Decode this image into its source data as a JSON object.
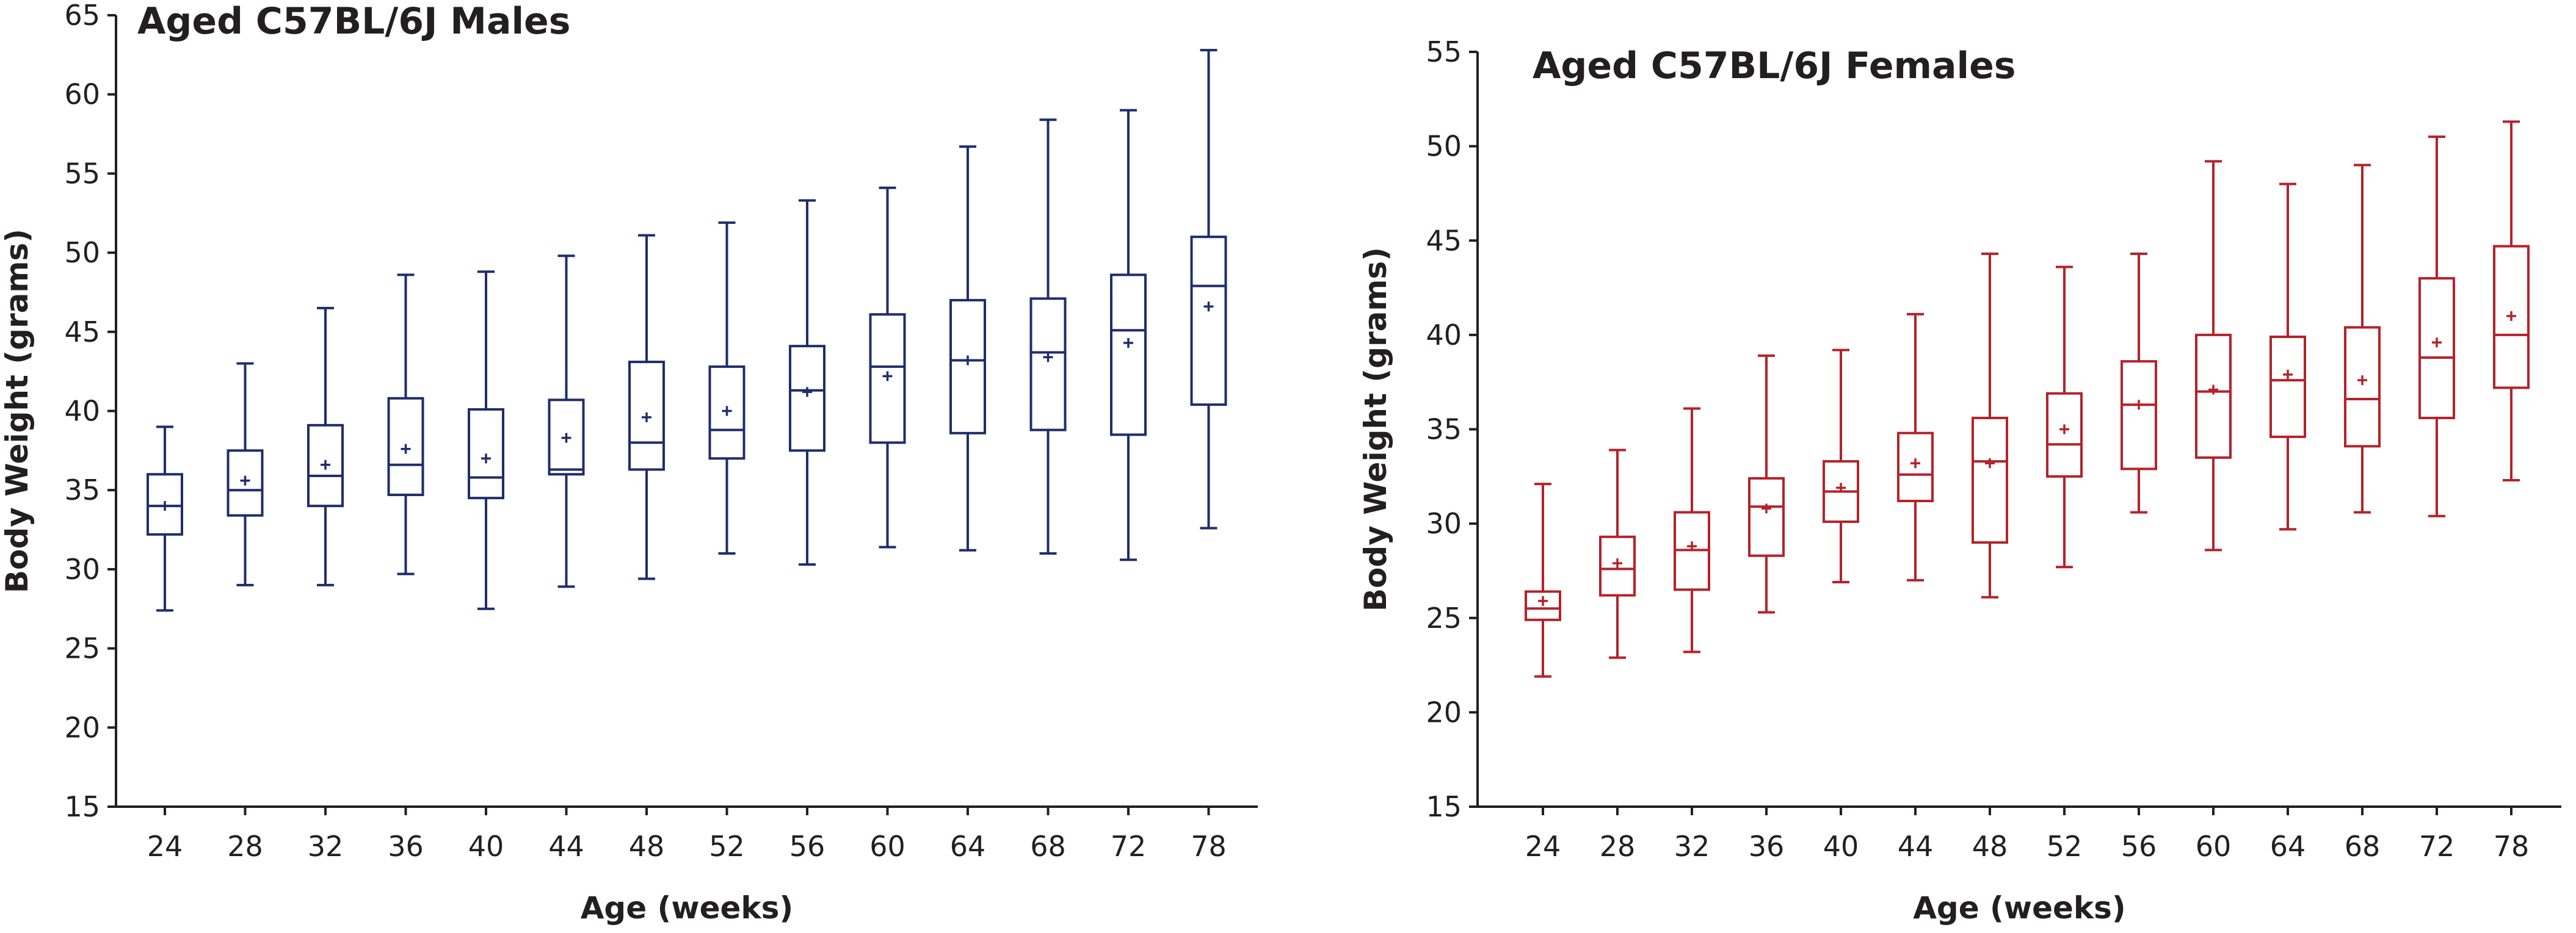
{
  "chart_data": [
    {
      "type": "box",
      "title": "Aged C57BL/6J Males",
      "xlabel": "Age (weeks)",
      "ylabel": "Body Weight (grams)",
      "ylim": [
        15,
        65
      ],
      "yticks": [
        15,
        20,
        25,
        30,
        35,
        40,
        45,
        50,
        55,
        60,
        65
      ],
      "grid": false,
      "color": "#1f2d6b",
      "categories": [
        "24",
        "28",
        "32",
        "36",
        "40",
        "44",
        "48",
        "52",
        "56",
        "60",
        "64",
        "68",
        "72",
        "78"
      ],
      "boxes": [
        {
          "min": 27.4,
          "q1": 32.2,
          "median": 34.0,
          "q3": 36.0,
          "max": 39.0,
          "mean": 34.0
        },
        {
          "min": 29.0,
          "q1": 33.4,
          "median": 35.0,
          "q3": 37.5,
          "max": 43.0,
          "mean": 35.6
        },
        {
          "min": 29.0,
          "q1": 34.0,
          "median": 35.9,
          "q3": 39.1,
          "max": 46.5,
          "mean": 36.6
        },
        {
          "min": 29.7,
          "q1": 34.7,
          "median": 36.6,
          "q3": 40.8,
          "max": 48.6,
          "mean": 37.6
        },
        {
          "min": 27.5,
          "q1": 34.5,
          "median": 35.8,
          "q3": 40.1,
          "max": 48.8,
          "mean": 37.0
        },
        {
          "min": 28.9,
          "q1": 36.0,
          "median": 36.3,
          "q3": 40.7,
          "max": 49.8,
          "mean": 38.3
        },
        {
          "min": 29.4,
          "q1": 36.3,
          "median": 38.0,
          "q3": 43.1,
          "max": 51.1,
          "mean": 39.6
        },
        {
          "min": 31.0,
          "q1": 37.0,
          "median": 38.8,
          "q3": 42.8,
          "max": 51.9,
          "mean": 40.0
        },
        {
          "min": 30.3,
          "q1": 37.5,
          "median": 41.3,
          "q3": 44.1,
          "max": 53.3,
          "mean": 41.2
        },
        {
          "min": 31.4,
          "q1": 38.0,
          "median": 42.8,
          "q3": 46.1,
          "max": 54.1,
          "mean": 42.2
        },
        {
          "min": 31.2,
          "q1": 38.6,
          "median": 43.2,
          "q3": 47.0,
          "max": 56.7,
          "mean": 43.2
        },
        {
          "min": 31.0,
          "q1": 38.8,
          "median": 43.7,
          "q3": 47.1,
          "max": 58.4,
          "mean": 43.4
        },
        {
          "min": 30.6,
          "q1": 38.5,
          "median": 45.1,
          "q3": 48.6,
          "max": 59.0,
          "mean": 44.3
        },
        {
          "min": 32.6,
          "q1": 40.4,
          "median": 47.9,
          "q3": 51.0,
          "max": 62.8,
          "mean": 46.6
        }
      ]
    },
    {
      "type": "box",
      "title": "Aged C57BL/6J Females",
      "xlabel": "Age (weeks)",
      "ylabel": "Body Weight (grams)",
      "ylim": [
        15,
        55
      ],
      "yticks": [
        15,
        20,
        25,
        30,
        35,
        40,
        45,
        50,
        55
      ],
      "grid": false,
      "color": "#b5222a",
      "categories": [
        "24",
        "28",
        "32",
        "36",
        "40",
        "44",
        "48",
        "52",
        "56",
        "60",
        "64",
        "68",
        "72",
        "78"
      ],
      "boxes": [
        {
          "min": 21.9,
          "q1": 24.9,
          "median": 25.5,
          "q3": 26.4,
          "max": 32.1,
          "mean": 25.9
        },
        {
          "min": 22.9,
          "q1": 26.2,
          "median": 27.6,
          "q3": 29.3,
          "max": 33.9,
          "mean": 27.9
        },
        {
          "min": 23.2,
          "q1": 26.5,
          "median": 28.6,
          "q3": 30.6,
          "max": 36.1,
          "mean": 28.8
        },
        {
          "min": 25.3,
          "q1": 28.3,
          "median": 30.9,
          "q3": 32.4,
          "max": 38.9,
          "mean": 30.8
        },
        {
          "min": 26.9,
          "q1": 30.1,
          "median": 31.7,
          "q3": 33.3,
          "max": 39.2,
          "mean": 31.9
        },
        {
          "min": 27.0,
          "q1": 31.2,
          "median": 32.6,
          "q3": 34.8,
          "max": 41.1,
          "mean": 33.2
        },
        {
          "min": 26.1,
          "q1": 29.0,
          "median": 33.3,
          "q3": 35.6,
          "max": 44.3,
          "mean": 33.2
        },
        {
          "min": 27.7,
          "q1": 32.5,
          "median": 34.2,
          "q3": 36.9,
          "max": 43.6,
          "mean": 35.0
        },
        {
          "min": 30.6,
          "q1": 32.9,
          "median": 36.3,
          "q3": 38.6,
          "max": 44.3,
          "mean": 36.3
        },
        {
          "min": 28.6,
          "q1": 33.5,
          "median": 37.0,
          "q3": 40.0,
          "max": 49.2,
          "mean": 37.1
        },
        {
          "min": 29.7,
          "q1": 34.6,
          "median": 37.6,
          "q3": 39.9,
          "max": 48.0,
          "mean": 37.9
        },
        {
          "min": 30.6,
          "q1": 34.1,
          "median": 36.6,
          "q3": 40.4,
          "max": 49.0,
          "mean": 37.6
        },
        {
          "min": 30.4,
          "q1": 35.6,
          "median": 38.8,
          "q3": 43.0,
          "max": 50.5,
          "mean": 39.6
        },
        {
          "min": 32.3,
          "q1": 37.2,
          "median": 40.0,
          "q3": 44.7,
          "max": 51.3,
          "mean": 41.0
        }
      ]
    }
  ]
}
